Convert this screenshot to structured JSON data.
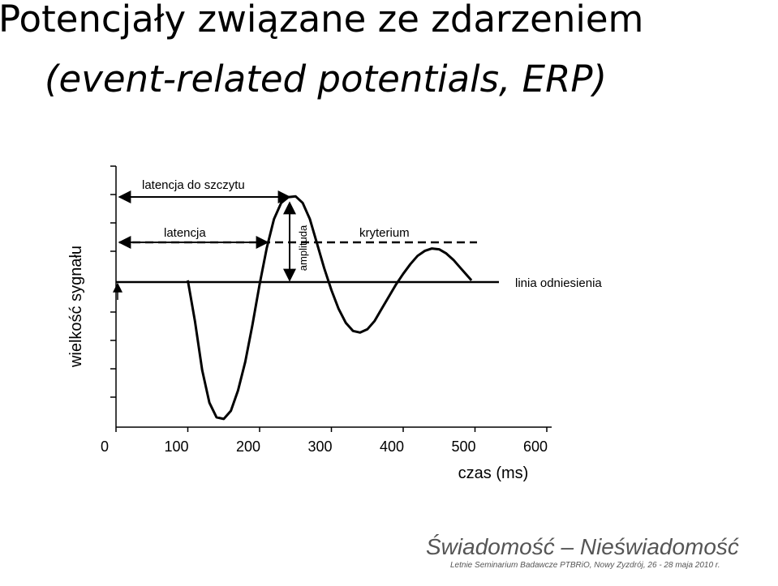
{
  "slide_title": [
    "Potencjały związane ze zdarzeniem",
    "(event-related potentials, ERP)"
  ],
  "chart_data": {
    "type": "line",
    "x_label": "czas (ms)",
    "y_label": "wielkość sygnału",
    "xlim": [
      0,
      600
    ],
    "xticks": [
      0,
      100,
      200,
      300,
      400,
      500,
      600
    ],
    "ylim": [
      -1.8,
      1.4
    ],
    "x": [
      100,
      110,
      120,
      130,
      140,
      150,
      160,
      170,
      180,
      190,
      200,
      210,
      220,
      230,
      240,
      250,
      260,
      270,
      280,
      290,
      300,
      310,
      320,
      330,
      340,
      350,
      360,
      370,
      380,
      390,
      400,
      410,
      420,
      430,
      440,
      450,
      460,
      470,
      480,
      490,
      495
    ],
    "series": [
      {
        "name": "ERP",
        "color": "#000000",
        "values": [
          0,
          -0.5,
          -1.1,
          -1.5,
          -1.68,
          -1.7,
          -1.6,
          -1.35,
          -1.0,
          -0.55,
          -0.05,
          0.4,
          0.75,
          0.95,
          1.02,
          1.03,
          0.95,
          0.75,
          0.45,
          0.15,
          -0.12,
          -0.35,
          -0.52,
          -0.62,
          -0.64,
          -0.6,
          -0.5,
          -0.35,
          -0.2,
          -0.05,
          0.08,
          0.2,
          0.3,
          0.36,
          0.39,
          0.38,
          0.33,
          0.25,
          0.15,
          0.05,
          0
        ]
      }
    ],
    "annotations": [
      "latencja do szczytu",
      "latencja",
      "amplituda",
      "kryterium",
      "linia odniesienia"
    ]
  },
  "footer": {
    "logo": "Świadomość – Nieświadomość",
    "event": "Letnie Seminarium Badawcze PTBRiO, Nowy Zyzdrój, 26 - 28 maja 2010 r."
  }
}
